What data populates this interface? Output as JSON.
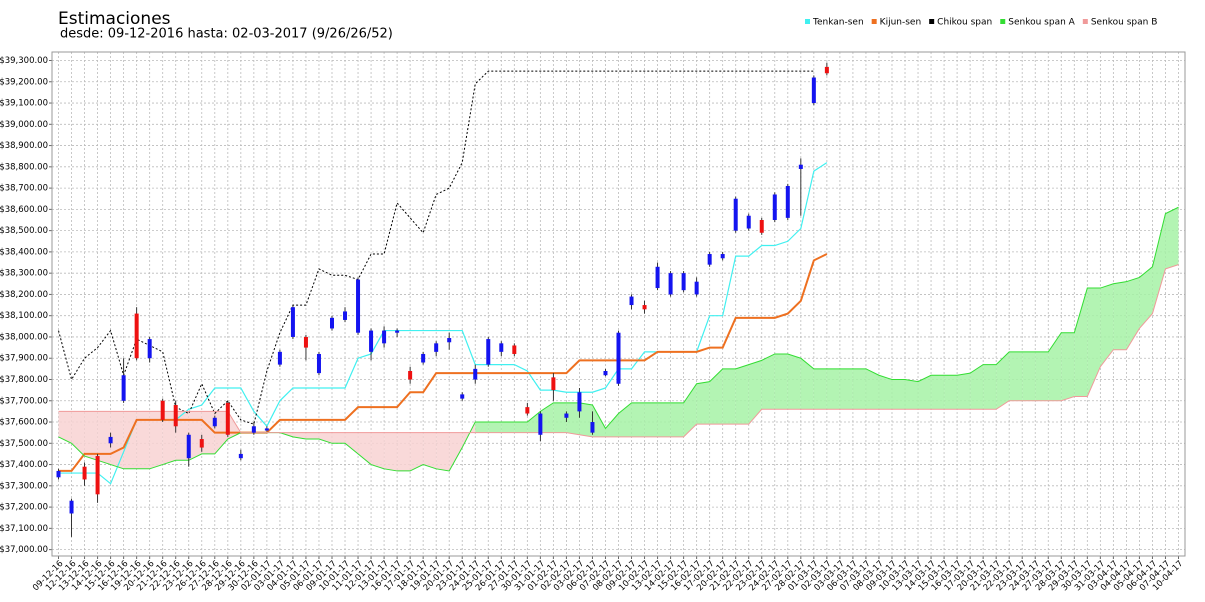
{
  "chart_data": {
    "type": "ichimoku",
    "title": "Estimaciones",
    "subtitle": "desde: 09-12-2016 hasta: 02-03-2017 (9/26/26/52)",
    "categories": [
      "09-12-16",
      "12-12-16",
      "13-12-16",
      "14-12-16",
      "15-12-16",
      "16-12-16",
      "19-12-16",
      "20-12-16",
      "21-12-16",
      "22-12-16",
      "23-12-16",
      "26-12-16",
      "27-12-16",
      "28-12-16",
      "29-12-16",
      "30-12-16",
      "02-01-17",
      "03-01-17",
      "04-01-17",
      "05-01-17",
      "06-01-17",
      "09-01-17",
      "10-01-17",
      "11-01-17",
      "12-01-17",
      "13-01-17",
      "16-01-17",
      "17-01-17",
      "18-01-17",
      "19-01-17",
      "20-01-17",
      "23-01-17",
      "24-01-17",
      "25-01-17",
      "26-01-17",
      "27-01-17",
      "30-01-17",
      "31-01-17",
      "01-02-17",
      "02-02-17",
      "03-02-17",
      "06-02-17",
      "07-02-17",
      "08-02-17",
      "09-02-17",
      "10-02-17",
      "13-02-17",
      "14-02-17",
      "15-02-17",
      "16-02-17",
      "17-02-17",
      "20-02-17",
      "21-02-17",
      "22-02-17",
      "23-02-17",
      "24-02-17",
      "27-02-17",
      "28-02-17",
      "01-03-17",
      "02-03-17",
      "03-03-17",
      "06-03-17",
      "07-03-17",
      "08-03-17",
      "09-03-17",
      "10-03-17",
      "13-03-17",
      "14-03-17",
      "15-03-17",
      "16-03-17",
      "17-03-17",
      "20-03-17",
      "21-03-17",
      "22-03-17",
      "23-03-17",
      "24-03-17",
      "27-03-17",
      "28-03-17",
      "29-03-17",
      "30-03-17",
      "31-03-17",
      "03-04-17",
      "04-04-17",
      "05-04-17",
      "06-04-17",
      "07-04-17",
      "10-04-17"
    ],
    "candles": {
      "up_color": "#1414f0",
      "down_color": "#ee1111",
      "open": [
        37340,
        37170,
        37390,
        37440,
        37500,
        37700,
        38110,
        37900,
        37700,
        37680,
        37430,
        37520,
        37580,
        37690,
        37430,
        37550,
        37560,
        37870,
        38000,
        38000,
        37830,
        38040,
        38080,
        38020,
        37930,
        37970,
        38020,
        37840,
        37880,
        37930,
        37975,
        37710,
        37800,
        37870,
        37930,
        37960,
        37670,
        37540,
        37810,
        37620,
        37650,
        37550,
        37820,
        37780,
        38150,
        38150,
        38230,
        38200,
        38220,
        38200,
        38340,
        38370,
        38500,
        38510,
        38550,
        38550,
        38560,
        38790,
        39100,
        39270,
        null,
        null,
        null,
        null,
        null,
        null,
        null,
        null,
        null,
        null,
        null,
        null,
        null,
        null,
        null,
        null,
        null,
        null,
        null,
        null,
        null,
        null,
        null,
        null,
        null,
        null,
        null
      ],
      "close": [
        37370,
        37230,
        37330,
        37260,
        37530,
        37820,
        37900,
        37990,
        37610,
        37580,
        37540,
        37480,
        37620,
        37540,
        37450,
        37580,
        37570,
        37930,
        38140,
        37950,
        37920,
        38090,
        38120,
        38270,
        38030,
        38030,
        38030,
        37800,
        37920,
        37970,
        37995,
        37730,
        37850,
        37990,
        37970,
        37920,
        37640,
        37640,
        37750,
        37640,
        37740,
        37600,
        37840,
        38020,
        38190,
        38130,
        38330,
        38300,
        38300,
        38260,
        38390,
        38390,
        38650,
        38570,
        38490,
        38670,
        38710,
        38810,
        39220,
        39240,
        null,
        null,
        null,
        null,
        null,
        null,
        null,
        null,
        null,
        null,
        null,
        null,
        null,
        null,
        null,
        null,
        null,
        null,
        null,
        null,
        null,
        null,
        null,
        null,
        null,
        null,
        null
      ],
      "high": [
        37380,
        37240,
        37410,
        37450,
        37550,
        37900,
        38140,
        38000,
        37710,
        37700,
        37550,
        37540,
        37630,
        37700,
        37470,
        37600,
        37580,
        37940,
        38150,
        38010,
        37930,
        38100,
        38140,
        38280,
        38040,
        38050,
        38040,
        37860,
        37930,
        37980,
        38020,
        37740,
        37870,
        38000,
        37980,
        37970,
        37690,
        37650,
        37830,
        37650,
        37760,
        37650,
        37850,
        38030,
        38200,
        38170,
        38350,
        38310,
        38310,
        38280,
        38400,
        38400,
        38660,
        38580,
        38560,
        38680,
        38720,
        38840,
        39230,
        39290,
        null,
        null,
        null,
        null,
        null,
        null,
        null,
        null,
        null,
        null,
        null,
        null,
        null,
        null,
        null,
        null,
        null,
        null,
        null,
        null,
        null,
        null,
        null,
        null,
        null,
        null,
        null
      ],
      "low": [
        37330,
        37060,
        37300,
        37220,
        37480,
        37690,
        37890,
        37880,
        37600,
        37550,
        37390,
        37460,
        37570,
        37530,
        37420,
        37540,
        37555,
        37860,
        37990,
        37890,
        37820,
        38030,
        38070,
        38010,
        37890,
        37950,
        38000,
        37780,
        37870,
        37910,
        37940,
        37700,
        37780,
        37860,
        37910,
        37910,
        37630,
        37510,
        37700,
        37600,
        37620,
        37540,
        37815,
        37770,
        38130,
        38110,
        38220,
        38190,
        38210,
        38190,
        38330,
        38360,
        38490,
        38500,
        38480,
        38540,
        38550,
        38570,
        39090,
        39230,
        null,
        null,
        null,
        null,
        null,
        null,
        null,
        null,
        null,
        null,
        null,
        null,
        null,
        null,
        null,
        null,
        null,
        null,
        null,
        null,
        null,
        null,
        null,
        null,
        null,
        null,
        null
      ]
    },
    "series": [
      {
        "name": "Tenkan-sen",
        "color": "#40f0f0",
        "width": 1.2,
        "values": [
          37360,
          37360,
          37360,
          37360,
          37310,
          37460,
          37610,
          37610,
          37610,
          37610,
          37660,
          37680,
          37760,
          37760,
          37760,
          37650,
          37580,
          37700,
          37760,
          37760,
          37760,
          37760,
          37760,
          37900,
          37920,
          38030,
          38030,
          38030,
          38030,
          38030,
          38030,
          38030,
          37870,
          37870,
          37870,
          37870,
          37840,
          37750,
          37750,
          37740,
          37740,
          37740,
          37760,
          37850,
          37850,
          37930,
          37930,
          37930,
          37930,
          37930,
          38100,
          38100,
          38380,
          38380,
          38430,
          38430,
          38450,
          38510,
          38780,
          38820,
          null,
          null,
          null,
          null,
          null,
          null,
          null,
          null,
          null,
          null,
          null,
          null,
          null,
          null,
          null,
          null,
          null,
          null,
          null,
          null,
          null,
          null,
          null,
          null,
          null,
          null,
          null
        ]
      },
      {
        "name": "Kijun-sen",
        "color": "#ee7020",
        "width": 2,
        "values": [
          37370,
          37370,
          37450,
          37450,
          37450,
          37480,
          37610,
          37610,
          37610,
          37610,
          37610,
          37610,
          37550,
          37550,
          37550,
          37550,
          37550,
          37610,
          37610,
          37610,
          37610,
          37610,
          37610,
          37670,
          37670,
          37670,
          37670,
          37740,
          37740,
          37830,
          37830,
          37830,
          37830,
          37830,
          37830,
          37830,
          37830,
          37830,
          37830,
          37830,
          37890,
          37890,
          37890,
          37890,
          37890,
          37890,
          37930,
          37930,
          37930,
          37930,
          37950,
          37950,
          38090,
          38090,
          38090,
          38090,
          38110,
          38170,
          38360,
          38390,
          null,
          null,
          null,
          null,
          null,
          null,
          null,
          null,
          null,
          null,
          null,
          null,
          null,
          null,
          null,
          null,
          null,
          null,
          null,
          null,
          null,
          null,
          null,
          null,
          null,
          null,
          null
        ]
      },
      {
        "name": "Chikou span",
        "color": "#000000",
        "width": 1,
        "dashed": true,
        "values": [
          38030,
          37800,
          37900,
          37950,
          38030,
          37820,
          37990,
          37960,
          37930,
          37670,
          37640,
          37780,
          37640,
          37700,
          37610,
          37590,
          37840,
          38020,
          38150,
          38150,
          38320,
          38290,
          38290,
          38270,
          38390,
          38390,
          38630,
          38560,
          38490,
          38670,
          38700,
          38820,
          39190,
          39250,
          39250,
          39250,
          39250,
          39250,
          39250,
          39250,
          39250,
          39250,
          39250,
          39250,
          39250,
          39250,
          39250,
          39250,
          39250,
          39250,
          39250,
          39250,
          39250,
          39250,
          39250,
          39250,
          39250,
          39250,
          39250,
          null,
          null,
          null,
          null,
          null,
          null,
          null,
          null,
          null,
          null,
          null,
          null,
          null,
          null,
          null,
          null,
          null,
          null,
          null,
          null,
          null,
          null,
          null,
          null,
          null,
          null,
          null,
          null
        ]
      },
      {
        "name": "Senkou span A",
        "color": "#33dd33",
        "width": 1,
        "fill": "#a6f2a6",
        "values": [
          37530,
          37500,
          37440,
          37420,
          37400,
          37380,
          37380,
          37380,
          37400,
          37420,
          37420,
          37450,
          37450,
          37520,
          37550,
          37550,
          37550,
          37550,
          37530,
          37520,
          37520,
          37500,
          37500,
          37450,
          37400,
          37380,
          37370,
          37370,
          37400,
          37380,
          37370,
          37480,
          37600,
          37600,
          37600,
          37600,
          37600,
          37650,
          37690,
          37690,
          37690,
          37680,
          37570,
          37640,
          37690,
          37690,
          37690,
          37690,
          37690,
          37780,
          37790,
          37850,
          37850,
          37870,
          37890,
          37920,
          37920,
          37900,
          37850,
          37850,
          37850,
          37850,
          37850,
          37820,
          37800,
          37800,
          37790,
          37820,
          37820,
          37820,
          37830,
          37870,
          37870,
          37930,
          37930,
          37930,
          37930,
          38020,
          38020,
          38230,
          38230,
          38250,
          38260,
          38280,
          38330,
          38580,
          38610
        ]
      },
      {
        "name": "Senkou span B",
        "color": "#f09a9a",
        "width": 1,
        "fill": "#f8d2d2",
        "values": [
          37650,
          37650,
          37650,
          37650,
          37650,
          37650,
          37650,
          37650,
          37650,
          37650,
          37650,
          37650,
          37650,
          37650,
          37550,
          37550,
          37550,
          37550,
          37550,
          37550,
          37550,
          37550,
          37550,
          37550,
          37550,
          37550,
          37550,
          37550,
          37550,
          37550,
          37550,
          37550,
          37550,
          37550,
          37550,
          37550,
          37550,
          37550,
          37550,
          37550,
          37540,
          37530,
          37530,
          37530,
          37530,
          37530,
          37530,
          37530,
          37530,
          37590,
          37590,
          37590,
          37590,
          37590,
          37660,
          37660,
          37660,
          37660,
          37660,
          37660,
          37660,
          37660,
          37660,
          37660,
          37660,
          37660,
          37660,
          37660,
          37660,
          37660,
          37660,
          37660,
          37660,
          37700,
          37700,
          37700,
          37700,
          37700,
          37720,
          37720,
          37860,
          37940,
          37940,
          38040,
          38110,
          38320,
          38340
        ]
      }
    ],
    "ylim": [
      36970,
      39340
    ],
    "yticks": [
      {
        "value": 37000,
        "label": "$37,000.00"
      },
      {
        "value": 37100,
        "label": "$37,100.00"
      },
      {
        "value": 37200,
        "label": "$37,200.00"
      },
      {
        "value": 37300,
        "label": "$37,300.00"
      },
      {
        "value": 37400,
        "label": "$37,400.00"
      },
      {
        "value": 37500,
        "label": "$37,500.00"
      },
      {
        "value": 37600,
        "label": "$37,600.00"
      },
      {
        "value": 37700,
        "label": "$37,700.00"
      },
      {
        "value": 37800,
        "label": "$37,800.00"
      },
      {
        "value": 37900,
        "label": "$37,900.00"
      },
      {
        "value": 38000,
        "label": "$38,000.00"
      },
      {
        "value": 38100,
        "label": "$38,100.00"
      },
      {
        "value": 38200,
        "label": "$38,200.00"
      },
      {
        "value": 38300,
        "label": "$38,300.00"
      },
      {
        "value": 38400,
        "label": "$38,400.00"
      },
      {
        "value": 38500,
        "label": "$38,500.00"
      },
      {
        "value": 38600,
        "label": "$38,600.00"
      },
      {
        "value": 38700,
        "label": "$38,700.00"
      },
      {
        "value": 38800,
        "label": "$38,800.00"
      },
      {
        "value": 38900,
        "label": "$38,900.00"
      },
      {
        "value": 39000,
        "label": "$39,000.00"
      },
      {
        "value": 39100,
        "label": "$39,100.00"
      },
      {
        "value": 39200,
        "label": "$39,200.00"
      },
      {
        "value": 39300,
        "label": "$39,300.00"
      }
    ],
    "grid": true,
    "legend": "top-right"
  }
}
